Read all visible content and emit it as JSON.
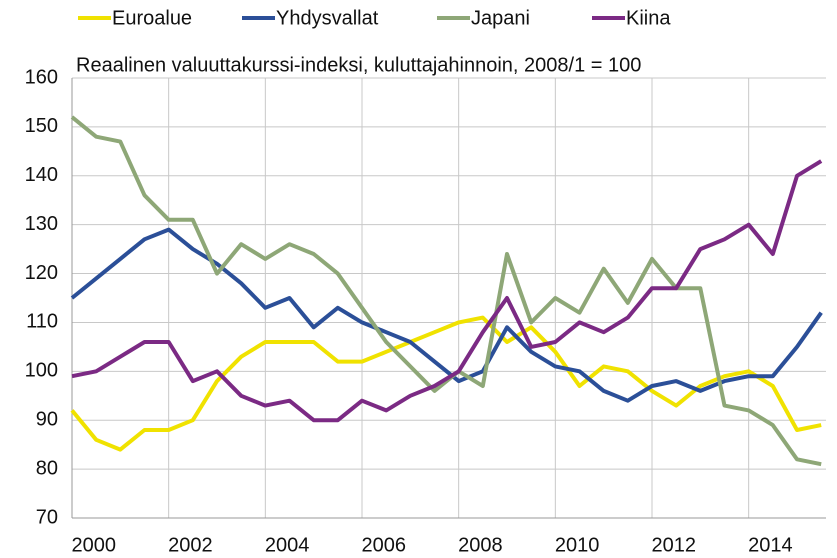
{
  "chart_data": {
    "type": "line",
    "subtitle": "Reaalinen valuuttakurssi-indeksi, kuluttajahinnoin, 2008/1 = 100",
    "x": [
      2000,
      2000.5,
      2001,
      2001.5,
      2002,
      2002.5,
      2003,
      2003.5,
      2004,
      2004.5,
      2005,
      2005.5,
      2006,
      2006.5,
      2007,
      2007.5,
      2008,
      2008.5,
      2009,
      2009.5,
      2010,
      2010.5,
      2011,
      2011.5,
      2012,
      2012.5,
      2013,
      2013.5,
      2014,
      2014.5,
      2015,
      2015.5
    ],
    "series": [
      {
        "name": "Euroalue",
        "color": "#f0e200",
        "values": [
          92,
          86,
          84,
          88,
          88,
          90,
          98,
          103,
          106,
          106,
          106,
          102,
          102,
          104,
          106,
          108,
          110,
          111,
          106,
          109,
          104,
          97,
          101,
          100,
          96,
          93,
          97,
          99,
          100,
          97,
          88,
          89
        ]
      },
      {
        "name": "Yhdysvallat",
        "color": "#2b4f98",
        "values": [
          115,
          119,
          123,
          127,
          129,
          125,
          122,
          118,
          113,
          115,
          109,
          113,
          110,
          108,
          106,
          102,
          98,
          100,
          109,
          104,
          101,
          100,
          96,
          94,
          97,
          98,
          96,
          98,
          99,
          99,
          105,
          112
        ]
      },
      {
        "name": "Japani",
        "color": "#8ea777",
        "values": [
          152,
          148,
          147,
          136,
          131,
          131,
          120,
          126,
          123,
          126,
          124,
          120,
          113,
          106,
          101,
          96,
          100,
          97,
          124,
          110,
          115,
          112,
          121,
          114,
          123,
          117,
          117,
          93,
          92,
          89,
          82,
          81
        ]
      },
      {
        "name": "Kiina",
        "color": "#7b2a84",
        "values": [
          99,
          100,
          103,
          106,
          106,
          98,
          100,
          95,
          93,
          94,
          90,
          90,
          94,
          92,
          95,
          97,
          100,
          108,
          115,
          105,
          106,
          110,
          108,
          111,
          117,
          117,
          125,
          127,
          130,
          124,
          140,
          143
        ]
      }
    ],
    "xlim": [
      2000,
      2015.6
    ],
    "xticks": [
      2000,
      2002,
      2004,
      2006,
      2008,
      2010,
      2012,
      2014
    ],
    "ylim": [
      70,
      160
    ],
    "yticks": [
      70,
      80,
      90,
      100,
      110,
      120,
      130,
      140,
      150,
      160
    ],
    "grid": true,
    "legend": "top"
  }
}
